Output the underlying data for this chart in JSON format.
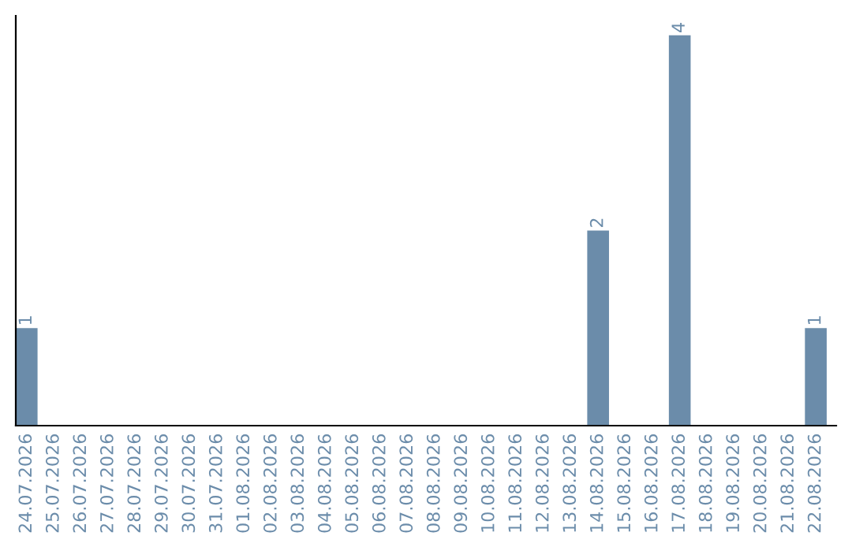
{
  "chart_data": {
    "type": "bar",
    "categories": [
      "24.07.2026",
      "25.07.2026",
      "26.07.2026",
      "27.07.2026",
      "28.07.2026",
      "29.07.2026",
      "30.07.2026",
      "31.07.2026",
      "01.08.2026",
      "02.08.2026",
      "03.08.2026",
      "04.08.2026",
      "05.08.2026",
      "06.08.2026",
      "07.08.2026",
      "08.08.2026",
      "09.08.2026",
      "10.08.2026",
      "11.08.2026",
      "12.08.2026",
      "13.08.2026",
      "14.08.2026",
      "15.08.2026",
      "16.08.2026",
      "17.08.2026",
      "18.08.2026",
      "19.08.2026",
      "20.08.2026",
      "21.08.2026",
      "22.08.2026"
    ],
    "values": [
      1,
      0,
      0,
      0,
      0,
      0,
      0,
      0,
      0,
      0,
      0,
      0,
      0,
      0,
      0,
      0,
      0,
      0,
      0,
      0,
      0,
      2,
      0,
      0,
      4,
      0,
      0,
      0,
      0,
      1
    ],
    "value_labels": [
      "1",
      null,
      null,
      null,
      null,
      null,
      null,
      null,
      null,
      null,
      null,
      null,
      null,
      null,
      null,
      null,
      null,
      null,
      null,
      null,
      null,
      "2",
      null,
      null,
      "4",
      null,
      null,
      null,
      null,
      "1"
    ],
    "color": "#6b8caa",
    "ylim": [
      0,
      4.2
    ],
    "tick_labels": "x",
    "grid": false
  }
}
